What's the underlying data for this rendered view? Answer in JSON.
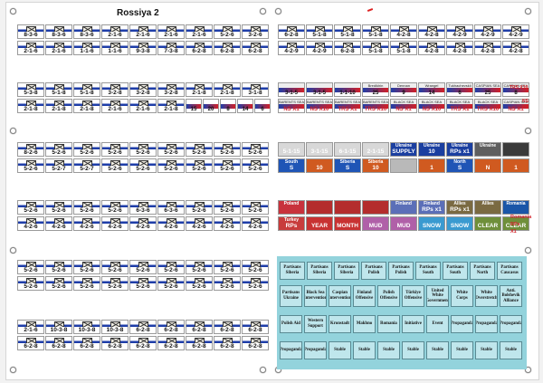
{
  "sheet": {
    "title": "Rossiya 2"
  },
  "colors": {
    "white": "#ffffff",
    "blue": "#1f3ea8",
    "red": "#d21f26",
    "cyan": "#93d3dc"
  },
  "left_blocks": [
    {
      "rows": [
        [
          "8-3-6",
          "8-3-6",
          "8-3-6",
          "2-1-6",
          "2-1-6",
          "2-1-6",
          "2-1-6",
          "5-2-6",
          "3-2-6"
        ],
        [
          "2-1-6",
          "2-1-6",
          "1-1-6",
          "1-1-6",
          "9-3-8",
          "7-3-8",
          "6-2-8",
          "6-2-8",
          "6-2-8"
        ]
      ]
    },
    {
      "rows": [
        [
          "5-3-8",
          "5-1-8",
          "5-1-8",
          "3-2-8",
          "3-2-8",
          "3-2-8",
          "2-1-8",
          "2-1-8",
          "3-1-8"
        ],
        [
          "2-1-8",
          "2-1-8",
          "2-1-8",
          "2-1-6",
          "2-1-6",
          "2-1-8",
          "15",
          "20",
          "8",
          "14",
          "6"
        ]
      ]
    },
    {
      "rows": [
        [
          "8-2-6",
          "5-2-6",
          "5-2-6",
          "5-2-6",
          "5-2-6",
          "5-2-6",
          "5-2-6",
          "5-2-6",
          "5-2-6"
        ],
        [
          "5-2-6",
          "5-2-7",
          "5-2-7",
          "5-2-6",
          "5-2-6",
          "5-2-6",
          "5-2-6",
          "5-2-6",
          "5-2-6"
        ]
      ]
    },
    {
      "rows": [
        [
          "5-2-6",
          "5-2-6",
          "5-2-6",
          "5-2-6",
          "6-3-6",
          "6-3-6",
          "5-2-6",
          "5-2-6",
          "5-2-6"
        ],
        [
          "4-2-6",
          "4-2-6",
          "4-2-6",
          "4-2-6",
          "4-2-6",
          "4-2-6",
          "4-2-6",
          "4-2-6",
          "4-2-6"
        ]
      ]
    },
    {
      "rows": [
        [
          "5-2-6",
          "5-2-6",
          "5-2-6",
          "5-2-6",
          "5-2-6",
          "5-2-6",
          "5-2-6",
          "5-2-6",
          "5-2-6"
        ],
        [
          "5-2-6",
          "5-2-6",
          "5-2-6",
          "5-2-6",
          "5-2-6",
          "5-2-6",
          "5-2-6",
          "5-2-6",
          "5-2-6"
        ]
      ]
    },
    {
      "rows": [
        [
          "2-1-6",
          "10-3-8",
          "10-3-8",
          "10-3-8",
          "6-2-8",
          "6-2-8",
          "6-2-8",
          "6-2-8",
          "6-2-8"
        ],
        [
          "6-2-8",
          "6-2-8",
          "6-2-8",
          "6-2-8",
          "6-2-8",
          "6-2-8",
          "6-2-8",
          "6-2-8",
          "6-2-8"
        ]
      ]
    }
  ],
  "right_block1": {
    "rows": [
      [
        "6-2-8",
        "5-1-8",
        "5-1-8",
        "5-1-8",
        "4-2-8",
        "4-2-8",
        "4-2-9",
        "4-2-9",
        "4-2-9"
      ],
      [
        "4-2-9",
        "4-2-9",
        "6-2-8",
        "5-1-8",
        "5-1-8",
        "4-2-8",
        "4-2-8",
        "4-2-8",
        "4-2-8"
      ]
    ]
  },
  "right_block2": {
    "row1": [
      {
        "top": "",
        "v": "3-1-5",
        "red": false
      },
      {
        "top": "",
        "v": "3-1-5",
        "red": false
      },
      {
        "top": "",
        "v": "1-1-10",
        "red": false
      },
      {
        "top": "Bredikhin",
        "v": "25",
        "red": false
      },
      {
        "top": "Dennan",
        "v": "9",
        "red": false
      },
      {
        "top": "Wrangel",
        "v": "14",
        "red": false
      },
      {
        "top": "Tukhachevskii",
        "v": "6",
        "red": false
      },
      {
        "top": "CASPIAN SEA",
        "v": "25",
        "red": false
      },
      {
        "top": "CASPIAN SEA",
        "v": "8",
        "red": false
      }
    ],
    "row1_extra": [
      "TRS X10"
    ],
    "row2": [
      {
        "top": "BARENTS SEA",
        "v": "NS X1",
        "red": true
      },
      {
        "top": "BARENTS SEA",
        "v": "NS X10",
        "red": true
      },
      {
        "top": "BARENTS SEA",
        "v": "TRS X1",
        "red": true
      },
      {
        "top": "BARENTS SEA",
        "v": "TRS X10",
        "red": true
      },
      {
        "top": "BLACK SEA",
        "v": "NS X1",
        "red": true
      },
      {
        "top": "BLACK SEA",
        "v": "NS X10",
        "red": true
      },
      {
        "top": "BLACK SEA",
        "v": "TRS X1",
        "red": true
      },
      {
        "top": "BLACK SEA",
        "v": "TRS X10",
        "red": true
      },
      {
        "top": "CASPIAN SEA",
        "v": "NS X1",
        "red": true
      }
    ],
    "row2_extra": [
      "NS",
      "X1"
    ]
  },
  "right_block3": {
    "row1": [
      {
        "top": "",
        "v": "5-1-15"
      },
      {
        "top": "",
        "v": "3-1-15"
      },
      {
        "top": "",
        "v": "6-1-15"
      },
      {
        "top": "",
        "v": "2-1-15"
      },
      {
        "top": "Ukraine",
        "v": "SUPPLY"
      },
      {
        "top": "Ukraine",
        "v": "10"
      },
      {
        "top": "Ukraine",
        "v": "RPs x1"
      },
      {
        "top": "Ukraine",
        "v": ""
      },
      {
        "top": "",
        "v": ""
      }
    ],
    "row2": [
      {
        "top": "South",
        "v": "S"
      },
      {
        "top": "",
        "v": "10"
      },
      {
        "top": "Siberia",
        "v": "S"
      },
      {
        "top": "Siberia",
        "v": "10"
      },
      {
        "top": "",
        "v": ""
      },
      {
        "top": "",
        "v": "1"
      },
      {
        "top": "North",
        "v": "S"
      },
      {
        "top": "",
        "v": "N"
      },
      {
        "top": "",
        "v": "1"
      }
    ]
  },
  "right_block4": {
    "row1": [
      {
        "top": "Poland",
        "v": ""
      },
      {
        "top": "",
        "v": ""
      },
      {
        "top": "",
        "v": ""
      },
      {
        "top": "",
        "v": ""
      },
      {
        "top": "Finland",
        "v": ""
      },
      {
        "top": "Finland",
        "v": "RPs x1"
      },
      {
        "top": "Allies",
        "v": "RPs x1"
      },
      {
        "top": "Allies",
        "v": ""
      },
      {
        "top": "Romania",
        "v": ""
      }
    ],
    "row2": [
      {
        "top": "Turkey",
        "v": "RPs"
      },
      {
        "top": "",
        "v": "YEAR"
      },
      {
        "top": "",
        "v": "MONTH"
      },
      {
        "top": "",
        "v": "MUD"
      },
      {
        "top": "",
        "v": "MUD"
      },
      {
        "top": "",
        "v": "SNOW"
      },
      {
        "top": "",
        "v": "SNOW"
      },
      {
        "top": "",
        "v": "CLEAR"
      },
      {
        "top": "",
        "v": "CLEAR"
      }
    ],
    "extra_right": [
      "Romania",
      "RPs",
      "X1"
    ]
  },
  "cards": [
    [
      "Partisans Siberia",
      "Partisans Siberia",
      "Partisans Siberia",
      "Partisans Polish",
      "Partisans Polish",
      "Partisans South",
      "Partisans South",
      "Partisans North",
      "Partisans Caucasus"
    ],
    [
      "Partisans Ukraine",
      "Black Sea Intervention",
      "Caspian Intervention",
      "Finland Offensive",
      "Polish Offensive",
      "Türkiye Offensive",
      "United White Government",
      "White Corps",
      "White Overstretch",
      "Anti. Bolshevik Alliance"
    ],
    [
      "Polish Aid",
      "Western Support",
      "Kronstadt",
      "Makhno",
      "Romania",
      "Initiative",
      "Event",
      "Propaganda",
      "Propaganda",
      "Propaganda"
    ],
    [
      "Propaganda",
      "Propaganda",
      "Stable",
      "Stable",
      "Stable",
      "Stable",
      "Stable",
      "Stable",
      "Stable",
      "Stable"
    ]
  ]
}
